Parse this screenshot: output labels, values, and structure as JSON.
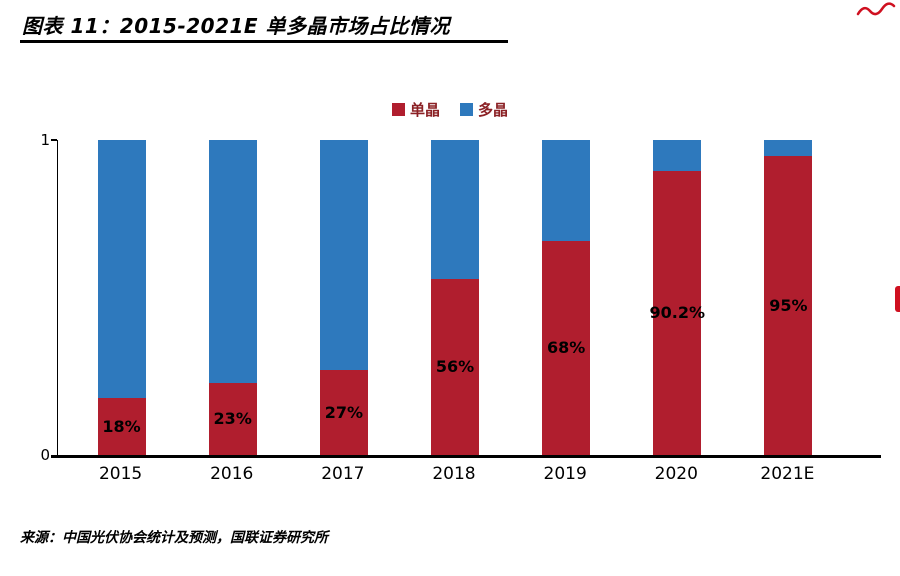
{
  "header": {
    "title": "图表 11：2015-2021E 单多晶市场占比情况"
  },
  "colors": {
    "mono_red": "#b01e2e",
    "poly_blue": "#2e79bd",
    "legend_text": "#8b2125",
    "axis_black": "#000000",
    "artifact_red": "#cf1020"
  },
  "chart_data": {
    "type": "bar",
    "stacked": true,
    "title": "2015-2021E 单多晶市场占比情况",
    "categories": [
      "2015",
      "2016",
      "2017",
      "2018",
      "2019",
      "2020",
      "2021E"
    ],
    "series": [
      {
        "name": "单晶",
        "color": "#b01e2e",
        "values": [
          0.18,
          0.23,
          0.27,
          0.56,
          0.68,
          0.902,
          0.95
        ]
      },
      {
        "name": "多晶",
        "color": "#2e79bd",
        "values": [
          0.82,
          0.77,
          0.73,
          0.44,
          0.32,
          0.098,
          0.05
        ]
      }
    ],
    "data_labels": [
      "18%",
      "23%",
      "27%",
      "56%",
      "68%",
      "90.2%",
      "95%"
    ],
    "ylim": [
      0,
      1
    ],
    "y_axis": {
      "max_label": "1",
      "min_label": "0"
    },
    "legend_position": "top-center",
    "grid": false
  },
  "footer": {
    "source": "来源：中国光伏协会统计及预测，国联证券研究所"
  }
}
